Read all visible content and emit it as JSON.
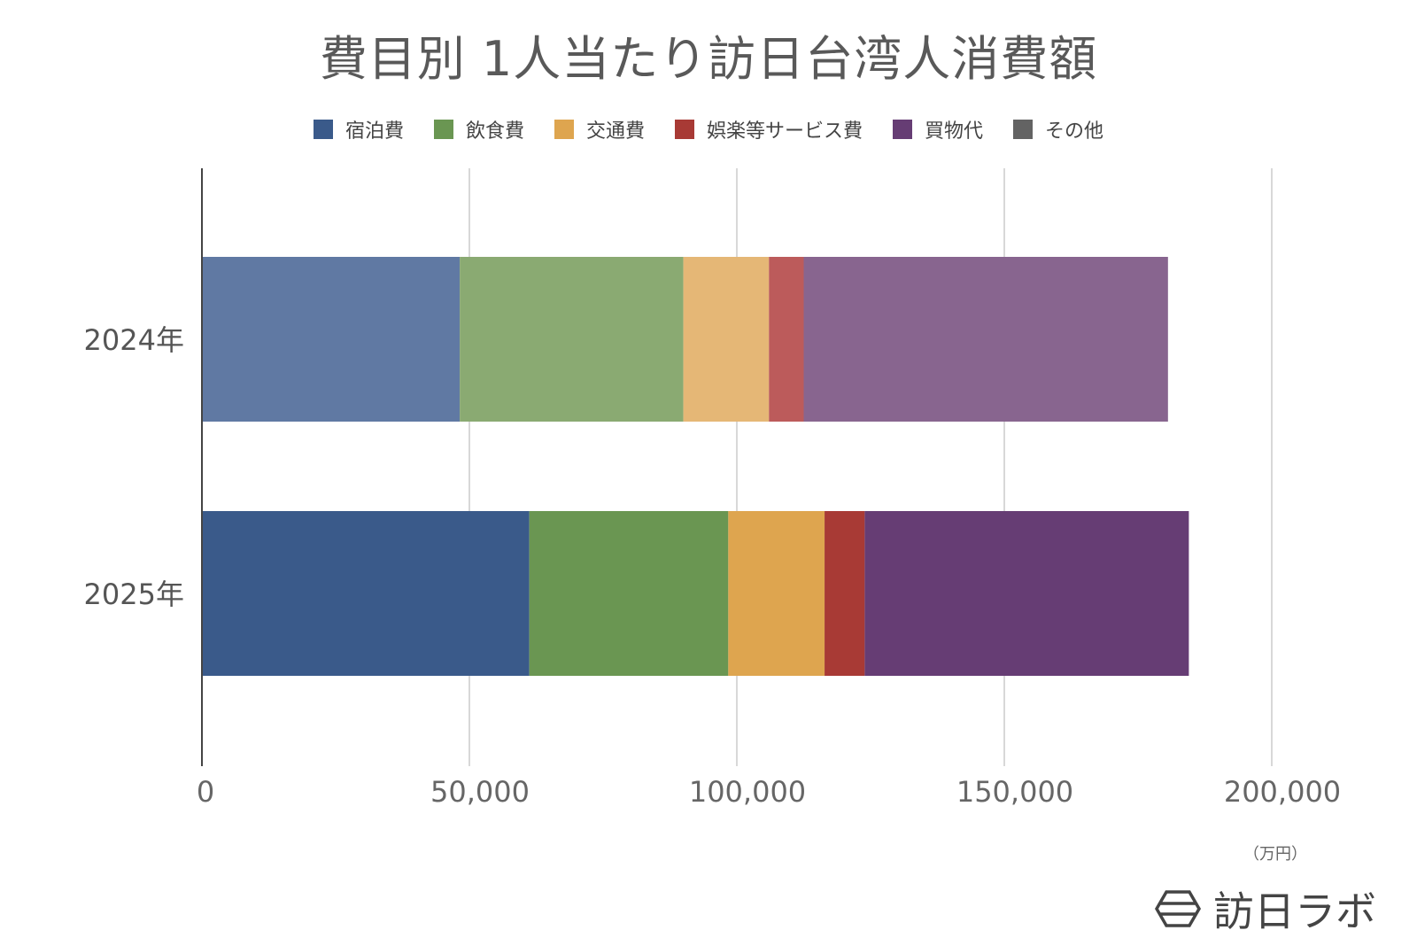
{
  "chart_data": {
    "type": "bar",
    "orientation": "horizontal",
    "stacked": true,
    "title": "費目別 1人当たり訪日台湾人消費額",
    "categories": [
      "2024年",
      "2025年"
    ],
    "series": [
      {
        "name": "宿泊費",
        "values": [
          48200,
          61200
        ],
        "color_2024": "#6079a3",
        "color": "#3a5a8a"
      },
      {
        "name": "飲食費",
        "values": [
          41800,
          37200
        ],
        "color_2024": "#8aaa72",
        "color": "#6a9652"
      },
      {
        "name": "交通費",
        "values": [
          16000,
          18000
        ],
        "color_2024": "#e5b776",
        "color": "#dea54f"
      },
      {
        "name": "娯楽等サービス費",
        "values": [
          6500,
          7500
        ],
        "color_2024": "#bc5b5b",
        "color": "#a83a35"
      },
      {
        "name": "買物代",
        "values": [
          68100,
          60600
        ],
        "color_2024": "#88658f",
        "color": "#663d74"
      },
      {
        "name": "その他",
        "values": [
          0,
          0
        ],
        "color_2024": "#666666",
        "color": "#636363"
      }
    ],
    "xlim": [
      0,
      200000
    ],
    "xticks": [
      0,
      50000,
      100000,
      150000,
      200000
    ],
    "xtick_labels": [
      "0",
      "50,000",
      "100,000",
      "150,000",
      "200,000"
    ],
    "xunit": "（万円）",
    "grid": true,
    "legend_position": "top"
  },
  "brand": {
    "name": "訪日ラボ",
    "logo_icon": "hexagon-logo-icon"
  }
}
